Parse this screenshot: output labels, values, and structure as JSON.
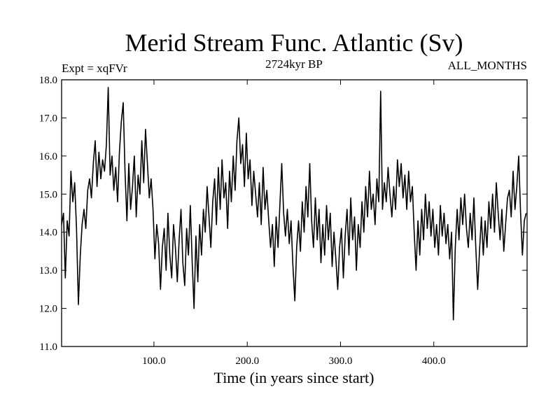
{
  "chart_data": {
    "type": "line",
    "title": "Merid Stream Func. Atlantic (Sv)",
    "subtitle": "2724kyr BP",
    "top_left_label": "Expt = xqFVr",
    "top_right_label": "ALL_MONTHS",
    "xlabel": "Time (in years since start)",
    "ylabel": "",
    "xlim": [
      1,
      500
    ],
    "ylim": [
      11.0,
      18.0
    ],
    "x_ticks": [
      100,
      200,
      300,
      400
    ],
    "x_tick_labels": [
      "100.0",
      "200.0",
      "300.0",
      "400.0"
    ],
    "y_ticks": [
      11,
      12,
      13,
      14,
      15,
      16,
      17,
      18
    ],
    "y_tick_labels": [
      "11.0",
      "12.0",
      "13.0",
      "14.0",
      "15.0",
      "16.0",
      "17.0",
      "18.0"
    ],
    "series": [
      {
        "name": "Merid Stream Func. Atlantic",
        "color": "#000000",
        "points": [
          [
            1,
            14.2
          ],
          [
            3,
            14.5
          ],
          [
            5,
            12.8
          ],
          [
            7,
            14.3
          ],
          [
            9,
            13.9
          ],
          [
            11,
            15.6
          ],
          [
            13,
            14.8
          ],
          [
            15,
            15.3
          ],
          [
            17,
            14.1
          ],
          [
            19,
            12.1
          ],
          [
            21,
            13.4
          ],
          [
            23,
            14.2
          ],
          [
            25,
            14.6
          ],
          [
            27,
            14.1
          ],
          [
            29,
            15.1
          ],
          [
            31,
            15.4
          ],
          [
            33,
            14.9
          ],
          [
            35,
            15.8
          ],
          [
            37,
            16.4
          ],
          [
            39,
            15.2
          ],
          [
            41,
            16.1
          ],
          [
            43,
            15.4
          ],
          [
            45,
            15.9
          ],
          [
            47,
            15.6
          ],
          [
            49,
            16.3
          ],
          [
            51,
            17.8
          ],
          [
            53,
            15.5
          ],
          [
            55,
            16.0
          ],
          [
            57,
            15.1
          ],
          [
            59,
            15.7
          ],
          [
            61,
            14.8
          ],
          [
            63,
            16.1
          ],
          [
            65,
            16.9
          ],
          [
            67,
            17.4
          ],
          [
            69,
            15.6
          ],
          [
            71,
            14.3
          ],
          [
            73,
            15.8
          ],
          [
            75,
            14.6
          ],
          [
            77,
            15.2
          ],
          [
            79,
            16.0
          ],
          [
            81,
            14.4
          ],
          [
            83,
            15.5
          ],
          [
            85,
            15.0
          ],
          [
            87,
            16.4
          ],
          [
            89,
            15.3
          ],
          [
            91,
            16.7
          ],
          [
            93,
            15.8
          ],
          [
            95,
            14.9
          ],
          [
            97,
            15.4
          ],
          [
            99,
            14.6
          ],
          [
            101,
            13.3
          ],
          [
            103,
            14.2
          ],
          [
            105,
            13.7
          ],
          [
            107,
            12.5
          ],
          [
            109,
            13.6
          ],
          [
            111,
            14.1
          ],
          [
            113,
            13.0
          ],
          [
            115,
            14.5
          ],
          [
            117,
            13.4
          ],
          [
            119,
            12.8
          ],
          [
            121,
            14.2
          ],
          [
            123,
            13.6
          ],
          [
            125,
            12.7
          ],
          [
            127,
            13.8
          ],
          [
            129,
            14.6
          ],
          [
            131,
            13.2
          ],
          [
            133,
            12.6
          ],
          [
            135,
            14.1
          ],
          [
            137,
            13.4
          ],
          [
            139,
            14.7
          ],
          [
            141,
            13.2
          ],
          [
            143,
            12.0
          ],
          [
            145,
            13.9
          ],
          [
            147,
            12.7
          ],
          [
            149,
            14.2
          ],
          [
            151,
            13.4
          ],
          [
            153,
            14.6
          ],
          [
            155,
            14.0
          ],
          [
            157,
            15.2
          ],
          [
            159,
            14.4
          ],
          [
            161,
            13.6
          ],
          [
            163,
            14.8
          ],
          [
            165,
            15.4
          ],
          [
            167,
            14.2
          ],
          [
            169,
            15.7
          ],
          [
            171,
            14.6
          ],
          [
            173,
            15.9
          ],
          [
            175,
            14.9
          ],
          [
            177,
            15.3
          ],
          [
            179,
            14.1
          ],
          [
            181,
            15.6
          ],
          [
            183,
            14.8
          ],
          [
            185,
            16.0
          ],
          [
            187,
            15.1
          ],
          [
            189,
            16.4
          ],
          [
            191,
            17.0
          ],
          [
            193,
            15.8
          ],
          [
            195,
            16.3
          ],
          [
            197,
            15.2
          ],
          [
            199,
            16.6
          ],
          [
            201,
            15.4
          ],
          [
            203,
            15.9
          ],
          [
            205,
            14.7
          ],
          [
            207,
            15.6
          ],
          [
            209,
            15.0
          ],
          [
            211,
            14.4
          ],
          [
            213,
            15.3
          ],
          [
            215,
            14.2
          ],
          [
            217,
            15.7
          ],
          [
            219,
            14.6
          ],
          [
            221,
            15.1
          ],
          [
            223,
            14.3
          ],
          [
            225,
            13.6
          ],
          [
            227,
            14.2
          ],
          [
            229,
            13.1
          ],
          [
            231,
            14.4
          ],
          [
            233,
            13.6
          ],
          [
            235,
            14.7
          ],
          [
            237,
            15.8
          ],
          [
            239,
            14.5
          ],
          [
            241,
            13.9
          ],
          [
            243,
            14.6
          ],
          [
            245,
            13.7
          ],
          [
            247,
            14.3
          ],
          [
            249,
            13.1
          ],
          [
            251,
            12.2
          ],
          [
            253,
            13.6
          ],
          [
            255,
            14.3
          ],
          [
            257,
            13.5
          ],
          [
            259,
            14.8
          ],
          [
            261,
            14.0
          ],
          [
            263,
            15.2
          ],
          [
            265,
            14.4
          ],
          [
            267,
            15.8
          ],
          [
            269,
            14.3
          ],
          [
            271,
            13.6
          ],
          [
            273,
            14.9
          ],
          [
            275,
            13.8
          ],
          [
            277,
            14.6
          ],
          [
            279,
            13.2
          ],
          [
            281,
            14.2
          ],
          [
            283,
            13.4
          ],
          [
            285,
            14.7
          ],
          [
            287,
            13.8
          ],
          [
            289,
            14.5
          ],
          [
            291,
            13.1
          ],
          [
            293,
            14.0
          ],
          [
            295,
            13.3
          ],
          [
            297,
            12.5
          ],
          [
            299,
            13.6
          ],
          [
            301,
            14.1
          ],
          [
            303,
            12.8
          ],
          [
            305,
            13.9
          ],
          [
            307,
            14.6
          ],
          [
            309,
            13.4
          ],
          [
            311,
            14.9
          ],
          [
            313,
            13.8
          ],
          [
            315,
            14.4
          ],
          [
            317,
            13.0
          ],
          [
            319,
            14.2
          ],
          [
            321,
            13.6
          ],
          [
            323,
            14.8
          ],
          [
            325,
            14.0
          ],
          [
            327,
            15.2
          ],
          [
            329,
            14.4
          ],
          [
            331,
            15.6
          ],
          [
            333,
            14.6
          ],
          [
            335,
            15.0
          ],
          [
            337,
            14.2
          ],
          [
            339,
            15.4
          ],
          [
            341,
            14.8
          ],
          [
            343,
            17.7
          ],
          [
            345,
            14.6
          ],
          [
            347,
            15.3
          ],
          [
            349,
            14.8
          ],
          [
            351,
            15.7
          ],
          [
            353,
            15.0
          ],
          [
            355,
            14.4
          ],
          [
            357,
            15.2
          ],
          [
            359,
            14.6
          ],
          [
            361,
            15.9
          ],
          [
            363,
            15.2
          ],
          [
            365,
            15.8
          ],
          [
            367,
            14.9
          ],
          [
            369,
            15.5
          ],
          [
            371,
            14.6
          ],
          [
            373,
            15.6
          ],
          [
            375,
            14.8
          ],
          [
            377,
            15.2
          ],
          [
            379,
            14.0
          ],
          [
            381,
            13.0
          ],
          [
            383,
            14.3
          ],
          [
            385,
            13.4
          ],
          [
            387,
            14.6
          ],
          [
            389,
            13.8
          ],
          [
            391,
            15.0
          ],
          [
            393,
            14.1
          ],
          [
            395,
            14.8
          ],
          [
            397,
            13.9
          ],
          [
            399,
            14.6
          ],
          [
            401,
            13.6
          ],
          [
            403,
            14.2
          ],
          [
            405,
            13.4
          ],
          [
            407,
            14.7
          ],
          [
            409,
            13.9
          ],
          [
            411,
            14.5
          ],
          [
            413,
            13.7
          ],
          [
            415,
            14.2
          ],
          [
            417,
            13.3
          ],
          [
            419,
            14.0
          ],
          [
            421,
            11.7
          ],
          [
            423,
            13.6
          ],
          [
            425,
            14.6
          ],
          [
            427,
            13.8
          ],
          [
            429,
            14.9
          ],
          [
            431,
            14.2
          ],
          [
            433,
            15.0
          ],
          [
            435,
            14.1
          ],
          [
            437,
            13.6
          ],
          [
            439,
            14.5
          ],
          [
            441,
            13.8
          ],
          [
            443,
            14.9
          ],
          [
            445,
            13.6
          ],
          [
            447,
            12.5
          ],
          [
            449,
            13.5
          ],
          [
            451,
            14.4
          ],
          [
            453,
            13.4
          ],
          [
            455,
            14.3
          ],
          [
            457,
            13.6
          ],
          [
            459,
            14.8
          ],
          [
            461,
            14.1
          ],
          [
            463,
            15.0
          ],
          [
            465,
            14.0
          ],
          [
            467,
            15.3
          ],
          [
            469,
            14.5
          ],
          [
            471,
            13.8
          ],
          [
            473,
            14.6
          ],
          [
            475,
            13.5
          ],
          [
            477,
            14.2
          ],
          [
            479,
            14.9
          ],
          [
            481,
            15.1
          ],
          [
            483,
            14.4
          ],
          [
            485,
            15.6
          ],
          [
            487,
            14.6
          ],
          [
            489,
            15.2
          ],
          [
            491,
            16.0
          ],
          [
            493,
            14.5
          ],
          [
            495,
            13.4
          ],
          [
            497,
            14.3
          ],
          [
            499,
            14.5
          ]
        ]
      }
    ]
  }
}
